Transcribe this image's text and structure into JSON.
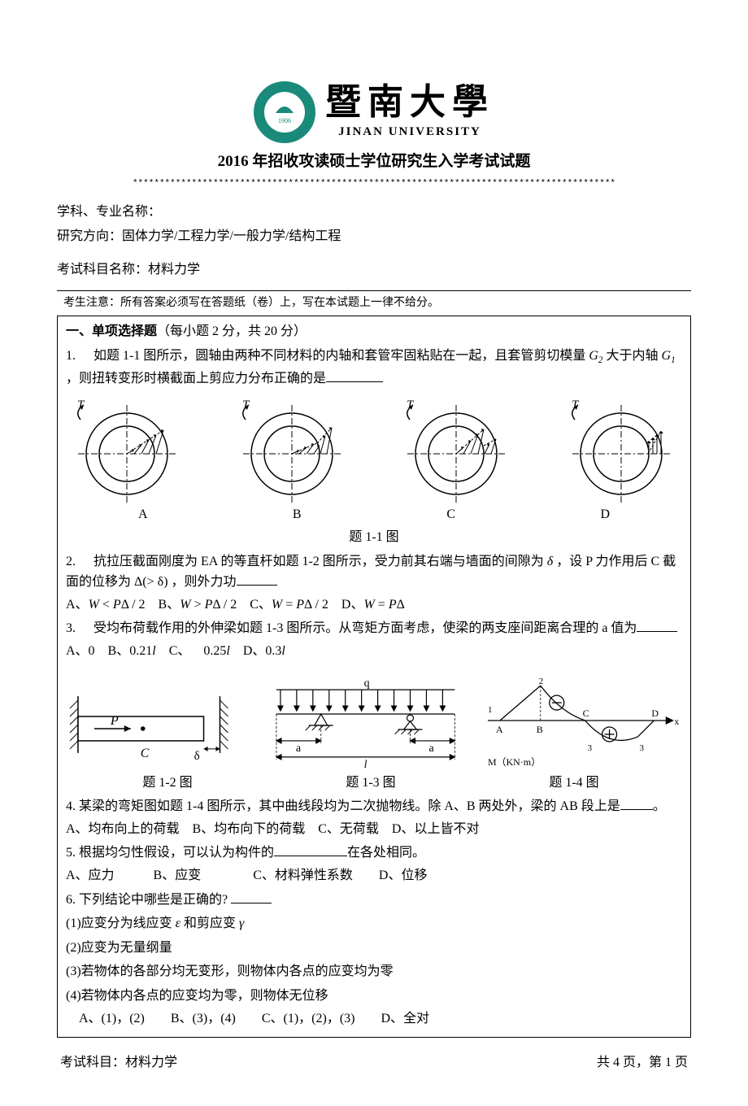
{
  "university": {
    "logo_year": "1906",
    "name_cn": "暨南大學",
    "name_en": "JINAN UNIVERSITY",
    "logo_color": "#1a8a7a"
  },
  "header": {
    "exam_title": "2016 年招收攻读硕士学位研究生入学考试试题",
    "stars": "******************************************************************************************",
    "subject_label": "学科、专业名称：",
    "direction_label": "研究方向：",
    "direction_value": "固体力学/工程力学/一般力学/结构工程",
    "course_label": "考试科目名称：",
    "course_value": "材料力学",
    "notice": "考生注意：所有答案必须写在答题纸（卷）上，写在本试题上一律不给分。"
  },
  "section1": {
    "title_bold": "一、单项选择题",
    "title_rest": "（每小题 2 分，共 20 分）"
  },
  "q1": {
    "num": "1.",
    "text_a": "如题 1-1 图所示，圆轴由两种不同材料的内轴和套管牢固粘贴在一起，且套管剪切模量",
    "text_b": "大于内轴",
    "text_c": "，则扭转变形时横截面上剪应力分布正确的是",
    "g2_html": "G<sub>2</sub>",
    "g1_html": "G<sub>1</sub>",
    "opt_labels": [
      "A",
      "B",
      "C",
      "D"
    ],
    "caption": "题 1-1 图",
    "torque_label": "T"
  },
  "q2": {
    "num": "2.",
    "text_a": "抗拉压截面刚度为 EA 的等直杆如题 1-2 图所示，受力前其右端与墙面的间隙为",
    "delta": "δ",
    "text_b": "，设 P 力作用后 C 截面的位移为",
    "expr": "Δ(> δ)",
    "text_c": "，则外力功",
    "options_html": "A、<i>W</i> &lt; <i>P</i>Δ / 2 B、<i>W</i> &gt; <i>P</i>Δ / 2 C、<i>W</i> = <i>P</i>Δ / 2 D、<i>W</i> = <i>P</i>Δ"
  },
  "q3": {
    "num": "3.",
    "text": "受均布荷载作用的外伸梁如题 1-3 图所示。从弯矩方面考虑，使梁的两支座间距离合理的 a 值为",
    "options_html": "A、0 B、0.21<i>l</i> C、 0.25<i>l</i> D、0.3<i>l</i>"
  },
  "figs2": {
    "fig12_P": "P",
    "fig12_C": "C",
    "fig12_delta": "δ",
    "fig13_q": "q",
    "fig13_a": "a",
    "fig13_l": "l",
    "fig14_labels": [
      "1",
      "2",
      "3",
      "A",
      "B",
      "C",
      "D",
      "x"
    ],
    "fig14_M": "M（KN·m）",
    "fig14_plus": "⊕",
    "fig14_minus": "⊖",
    "cap12": "题 1-2 图",
    "cap13": "题 1-3 图",
    "cap14": "题 1-4 图"
  },
  "q4": {
    "num": "4.",
    "text_a": "某梁的弯矩图如题 1-4 图所示，其中曲线段均为二次抛物线。除 A、B 两处外，梁的 AB 段上是",
    "text_b": "。",
    "options": "A、均布向上的荷载 B、均布向下的荷载 C、无荷载 D、以上皆不对"
  },
  "q5": {
    "num": "5.",
    "text_a": "根据均匀性假设，可以认为构件的",
    "text_b": "在各处相同。",
    "options": "A、应力   B、应变    C、材料弹性系数  D、位移"
  },
  "q6": {
    "num": "6.",
    "text": "下列结论中哪些是正确的?",
    "s1_a": "(1)应变分为线应变",
    "s1_eps": "ε",
    "s1_b": "和剪应变",
    "s1_gamma": "γ",
    "s2": "(2)应变为无量纲量",
    "s3": "(3)若物体的各部分均无变形，则物体内各点的应变均为零",
    "s4": "(4)若物体内各点的应变均为零，则物体无位移",
    "options": " A、(1)，(2)  B、(3)，(4)  C、(1)，(2)，(3)  D、全对"
  },
  "footer": {
    "left_label": "考试科目：",
    "left_value": "材料力学",
    "right": "共 4 页，第 1 页"
  },
  "colors": {
    "text": "#000000",
    "bg": "#ffffff",
    "border": "#000000"
  }
}
